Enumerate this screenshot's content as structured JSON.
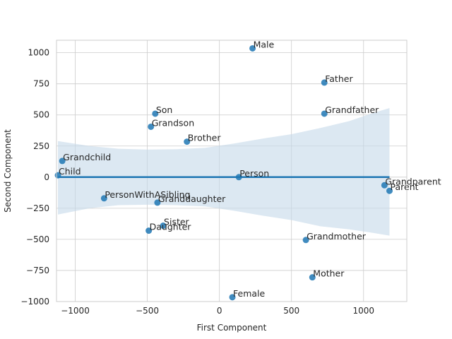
{
  "chart_data": {
    "type": "scatter",
    "title": "",
    "xlabel": "First Component",
    "ylabel": "Second Component",
    "xlim": [
      -1130,
      1300
    ],
    "ylim": [
      -1000,
      1100
    ],
    "xticks": [
      -1000,
      -500,
      0,
      500,
      1000
    ],
    "yticks": [
      -1000,
      -750,
      -500,
      -250,
      0,
      250,
      500,
      750,
      1000
    ],
    "xtick_labels": [
      "−1000",
      "−500",
      "0",
      "500",
      "1000"
    ],
    "ytick_labels": [
      "−1000",
      "−750",
      "−500",
      "−250",
      "0",
      "250",
      "500",
      "750",
      "1000"
    ],
    "grid": true,
    "point_color": "#1f77b4",
    "band_color": "#c5d9ea",
    "points": [
      {
        "label": "Male",
        "x": 230,
        "y": 1035
      },
      {
        "label": "Father",
        "x": 728,
        "y": 760
      },
      {
        "label": "Son",
        "x": -445,
        "y": 510
      },
      {
        "label": "Grandfather",
        "x": 728,
        "y": 510
      },
      {
        "label": "Grandson",
        "x": -475,
        "y": 405
      },
      {
        "label": "Brother",
        "x": -225,
        "y": 285
      },
      {
        "label": "Grandchild",
        "x": -1090,
        "y": 130
      },
      {
        "label": "Child",
        "x": -1120,
        "y": 15
      },
      {
        "label": "Person",
        "x": 135,
        "y": 0
      },
      {
        "label": "Grandparent",
        "x": 1145,
        "y": -65
      },
      {
        "label": "Parent",
        "x": 1180,
        "y": -110
      },
      {
        "label": "PersonWithASibling",
        "x": -800,
        "y": -170
      },
      {
        "label": "Granddaughter",
        "x": -430,
        "y": -205
      },
      {
        "label": "Sister",
        "x": -390,
        "y": -390
      },
      {
        "label": "Daughter",
        "x": -490,
        "y": -430
      },
      {
        "label": "Grandmother",
        "x": 600,
        "y": -505
      },
      {
        "label": "Mother",
        "x": 645,
        "y": -805
      },
      {
        "label": "Female",
        "x": 90,
        "y": -965
      }
    ],
    "regression": {
      "x_start": -1120,
      "x_end": 1180,
      "y": 0
    },
    "confidence_band": [
      {
        "x": -1120,
        "upper": 290,
        "lower": -300
      },
      {
        "x": -900,
        "upper": 250,
        "lower": -250
      },
      {
        "x": -700,
        "upper": 228,
        "lower": -225
      },
      {
        "x": -500,
        "upper": 222,
        "lower": -222
      },
      {
        "x": -300,
        "upper": 225,
        "lower": -225
      },
      {
        "x": -100,
        "upper": 235,
        "lower": -235
      },
      {
        "x": 100,
        "upper": 270,
        "lower": -270
      },
      {
        "x": 300,
        "upper": 310,
        "lower": -310
      },
      {
        "x": 500,
        "upper": 345,
        "lower": -345
      },
      {
        "x": 700,
        "upper": 395,
        "lower": -395
      },
      {
        "x": 900,
        "upper": 450,
        "lower": -420
      },
      {
        "x": 1050,
        "upper": 510,
        "lower": -445
      },
      {
        "x": 1180,
        "upper": 555,
        "lower": -470
      }
    ]
  }
}
